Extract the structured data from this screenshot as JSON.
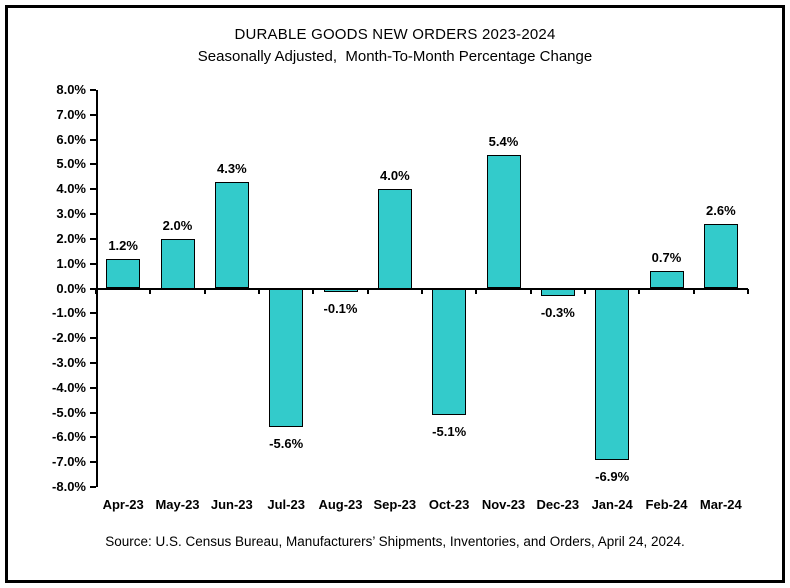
{
  "frame": {
    "border_color": "#000000",
    "background_color": "#ffffff"
  },
  "chart_data": {
    "type": "bar",
    "title": "DURABLE GOODS NEW ORDERS 2023-2024",
    "subtitle": "Seasonally Adjusted,  Month-To-Month Percentage Change",
    "categories": [
      "Apr-23",
      "May-23",
      "Jun-23",
      "Jul-23",
      "Aug-23",
      "Sep-23",
      "Oct-23",
      "Nov-23",
      "Dec-23",
      "Jan-24",
      "Feb-24",
      "Mar-24"
    ],
    "values": [
      1.2,
      2.0,
      4.3,
      -5.6,
      -0.1,
      4.0,
      -5.1,
      5.4,
      -0.3,
      -6.9,
      0.7,
      2.6
    ],
    "bar_labels": [
      "1.2%",
      "2.0%",
      "4.3%",
      "-5.6%",
      "-0.1%",
      "4.0%",
      "-5.1%",
      "5.4%",
      "-0.3%",
      "-6.9%",
      "0.7%",
      "2.6%"
    ],
    "yticks": [
      "8.0%",
      "7.0%",
      "6.0%",
      "5.0%",
      "4.0%",
      "3.0%",
      "2.0%",
      "1.0%",
      "0.0%",
      "-1.0%",
      "-2.0%",
      "-3.0%",
      "-4.0%",
      "-5.0%",
      "-6.0%",
      "-7.0%",
      "-8.0%"
    ],
    "ylim": [
      -8,
      8
    ],
    "ytick_step": 1,
    "xlabel": "",
    "ylabel": "",
    "grid": "off",
    "legend": "none",
    "bar_color": "#33CBCB",
    "bar_border_color": "#000000",
    "axis_color": "#000000",
    "text_color": "#000000"
  },
  "source_note": "Source: U.S. Census Bureau, Manufacturers’ Shipments, Inventories, and Orders, April 24, 2024."
}
